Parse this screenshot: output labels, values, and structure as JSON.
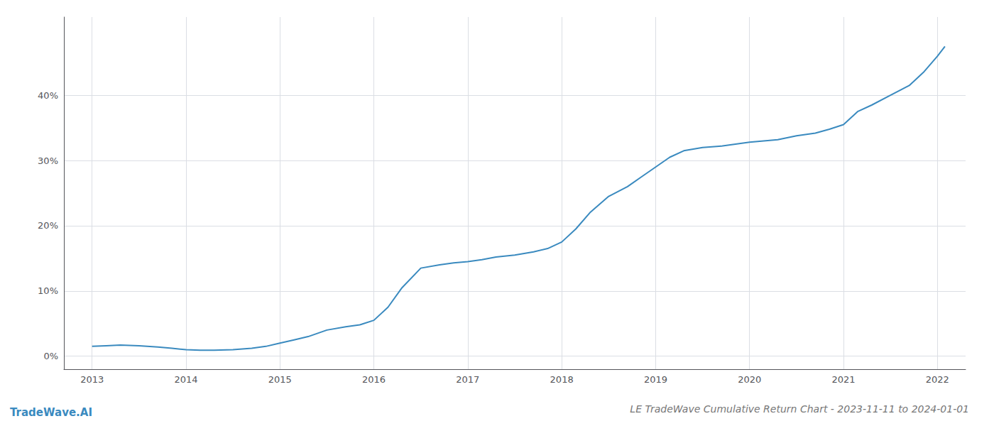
{
  "chart_data": {
    "type": "line",
    "title": "LE TradeWave Cumulative Return Chart - 2023-11-11 to 2024-01-01",
    "annotations": [
      "TradeWave.AI"
    ],
    "color": "#3a8abf",
    "x": [
      2013.0,
      2013.15,
      2013.3,
      2013.5,
      2013.7,
      2013.85,
      2014.0,
      2014.15,
      2014.3,
      2014.5,
      2014.7,
      2014.85,
      2015.0,
      2015.15,
      2015.3,
      2015.5,
      2015.7,
      2015.85,
      2016.0,
      2016.15,
      2016.3,
      2016.5,
      2016.7,
      2016.85,
      2017.0,
      2017.15,
      2017.3,
      2017.5,
      2017.7,
      2017.85,
      2018.0,
      2018.15,
      2018.3,
      2018.5,
      2018.7,
      2018.85,
      2019.0,
      2019.15,
      2019.3,
      2019.5,
      2019.7,
      2019.85,
      2020.0,
      2020.15,
      2020.3,
      2020.5,
      2020.7,
      2020.85,
      2021.0,
      2021.15,
      2021.3,
      2021.5,
      2021.7,
      2021.85,
      2022.0,
      2022.08
    ],
    "values": [
      1.5,
      1.6,
      1.7,
      1.6,
      1.4,
      1.2,
      1.0,
      0.9,
      0.9,
      1.0,
      1.2,
      1.5,
      2.0,
      2.5,
      3.0,
      4.0,
      4.5,
      4.8,
      5.5,
      7.5,
      10.5,
      13.5,
      14.0,
      14.3,
      14.5,
      14.8,
      15.2,
      15.5,
      16.0,
      16.5,
      17.5,
      19.5,
      22.0,
      24.5,
      26.0,
      27.5,
      29.0,
      30.5,
      31.5,
      32.0,
      32.2,
      32.5,
      32.8,
      33.0,
      33.2,
      33.8,
      34.2,
      34.8,
      35.5,
      37.5,
      38.5,
      40.0,
      41.5,
      43.5,
      46.0,
      47.5
    ],
    "xlim": [
      2012.7,
      2022.3
    ],
    "ylim": [
      -2,
      52
    ],
    "xticks": [
      2013,
      2014,
      2015,
      2016,
      2017,
      2018,
      2019,
      2020,
      2021,
      2022
    ],
    "yticks": [
      {
        "value": 0,
        "label": "0%"
      },
      {
        "value": 10,
        "label": "10%"
      },
      {
        "value": 20,
        "label": "20%"
      },
      {
        "value": 30,
        "label": "30%"
      },
      {
        "value": 40,
        "label": "40%"
      }
    ],
    "grid": true
  }
}
